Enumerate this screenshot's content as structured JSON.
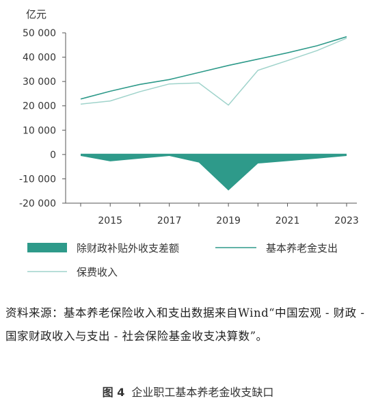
{
  "chart_data": {
    "type": "line",
    "unit_label": "亿元",
    "ylim": [
      -20000,
      50000
    ],
    "y_ticks": [
      50000,
      40000,
      30000,
      20000,
      10000,
      0,
      -10000,
      -20000
    ],
    "y_tick_labels": [
      "50 000",
      "40 000",
      "30 000",
      "20 000",
      "10 000",
      "0",
      "-10 000",
      "-20 000"
    ],
    "x": [
      2014,
      2015,
      2016,
      2017,
      2018,
      2019,
      2020,
      2021,
      2022,
      2023
    ],
    "x_tick_labels": [
      "2015",
      "2017",
      "2019",
      "2021",
      "2023"
    ],
    "x_tick_values": [
      2015,
      2017,
      2019,
      2021,
      2023
    ],
    "series": [
      {
        "name": "除财政补贴外收支差额",
        "kind": "area",
        "color": "#2e9a8a",
        "values": [
          -600,
          -2800,
          -1700,
          -600,
          -3300,
          -14800,
          -3700,
          -2700,
          -1700,
          -600
        ]
      },
      {
        "name": "基本养老金支出",
        "kind": "line",
        "color": "#2e9a8a",
        "values": [
          22800,
          26000,
          28800,
          30800,
          33700,
          36600,
          39200,
          41800,
          44700,
          48400
        ]
      },
      {
        "name": "保费收入",
        "kind": "line",
        "color": "#9fd3cb",
        "values": [
          20700,
          22000,
          25800,
          29000,
          29400,
          20300,
          34600,
          38600,
          42700,
          47800
        ]
      }
    ],
    "legend_position": "bottom",
    "grid": false
  },
  "source_note": "资料来源：基本养老保险收入和支出数据来自Wind“中国宏观 - 财政 - 国家财政收入与支出 - 社会保险基金收支决算数”。",
  "figure_caption": {
    "number": "图 4",
    "title": "企业职工基本养老金收支缺口"
  }
}
